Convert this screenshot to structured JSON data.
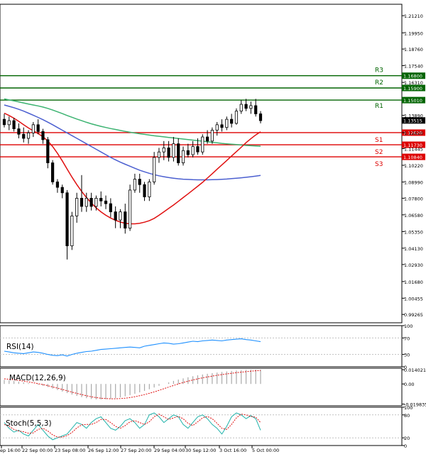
{
  "chart_data": {
    "type": "candlestick",
    "instrument_panel": {
      "y_ticks": [
        "1.21210",
        "1.19950",
        "1.18760",
        "1.17540",
        "1.16310",
        "1.13890",
        "1.12620",
        "1.11445",
        "1.10220",
        "1.08990",
        "1.07800",
        "1.06580",
        "1.05350",
        "1.04130",
        "1.02930",
        "1.01680",
        "1.00455",
        "0.99265"
      ],
      "ylim": [
        0.9865,
        1.2205
      ],
      "current_price": "1.13515",
      "x_labels": [
        "ep 16:00",
        "22 Sep 00:00",
        "23 Sep 08:00",
        "26 Sep 12:00",
        "27 Sep 20:00",
        "29 Sep 04:00",
        "30 Sep 12:00",
        "3 Oct 16:00",
        "5 Oct 00:00"
      ],
      "levels": [
        {
          "name": "R3",
          "value": 1.168,
          "label": "1.16800",
          "color": "#006400"
        },
        {
          "name": "R2",
          "value": 1.159,
          "label": "1.15900",
          "color": "#006400"
        },
        {
          "name": "R1",
          "value": 1.1501,
          "label": "1.15010",
          "color": "#006400"
        },
        {
          "name": "S1",
          "value": 1.1262,
          "label": "1.12620",
          "color": "#dd0000"
        },
        {
          "name": "S2",
          "value": 1.1173,
          "label": "1.11730",
          "color": "#dd0000"
        },
        {
          "name": "S3",
          "value": 1.1084,
          "label": "1.10840",
          "color": "#dd0000"
        }
      ],
      "candles": [
        {
          "o": 1.136,
          "h": 1.14,
          "l": 1.13,
          "c": 1.132
        },
        {
          "o": 1.132,
          "h": 1.138,
          "l": 1.128,
          "c": 1.135
        },
        {
          "o": 1.135,
          "h": 1.137,
          "l": 1.127,
          "c": 1.129
        },
        {
          "o": 1.129,
          "h": 1.133,
          "l": 1.122,
          "c": 1.125
        },
        {
          "o": 1.125,
          "h": 1.13,
          "l": 1.119,
          "c": 1.122
        },
        {
          "o": 1.122,
          "h": 1.128,
          "l": 1.118,
          "c": 1.126
        },
        {
          "o": 1.126,
          "h": 1.134,
          "l": 1.123,
          "c": 1.132
        },
        {
          "o": 1.132,
          "h": 1.136,
          "l": 1.125,
          "c": 1.127
        },
        {
          "o": 1.127,
          "h": 1.129,
          "l": 1.118,
          "c": 1.121
        },
        {
          "o": 1.121,
          "h": 1.123,
          "l": 1.1,
          "c": 1.104
        },
        {
          "o": 1.104,
          "h": 1.106,
          "l": 1.088,
          "c": 1.09
        },
        {
          "o": 1.09,
          "h": 1.092,
          "l": 1.082,
          "c": 1.086
        },
        {
          "o": 1.086,
          "h": 1.088,
          "l": 1.078,
          "c": 1.082
        },
        {
          "o": 1.082,
          "h": 1.084,
          "l": 1.033,
          "c": 1.043
        },
        {
          "o": 1.043,
          "h": 1.068,
          "l": 1.04,
          "c": 1.065
        },
        {
          "o": 1.065,
          "h": 1.082,
          "l": 1.06,
          "c": 1.078
        },
        {
          "o": 1.078,
          "h": 1.095,
          "l": 1.068,
          "c": 1.072
        },
        {
          "o": 1.072,
          "h": 1.082,
          "l": 1.068,
          "c": 1.078
        },
        {
          "o": 1.078,
          "h": 1.082,
          "l": 1.069,
          "c": 1.072
        },
        {
          "o": 1.072,
          "h": 1.08,
          "l": 1.069,
          "c": 1.078
        },
        {
          "o": 1.078,
          "h": 1.083,
          "l": 1.072,
          "c": 1.076
        },
        {
          "o": 1.076,
          "h": 1.08,
          "l": 1.07,
          "c": 1.074
        },
        {
          "o": 1.074,
          "h": 1.078,
          "l": 1.064,
          "c": 1.068
        },
        {
          "o": 1.068,
          "h": 1.072,
          "l": 1.056,
          "c": 1.062
        },
        {
          "o": 1.062,
          "h": 1.07,
          "l": 1.056,
          "c": 1.068
        },
        {
          "o": 1.068,
          "h": 1.074,
          "l": 1.052,
          "c": 1.056
        },
        {
          "o": 1.056,
          "h": 1.088,
          "l": 1.054,
          "c": 1.084
        },
        {
          "o": 1.084,
          "h": 1.096,
          "l": 1.082,
          "c": 1.092
        },
        {
          "o": 1.092,
          "h": 1.096,
          "l": 1.082,
          "c": 1.088
        },
        {
          "o": 1.088,
          "h": 1.09,
          "l": 1.076,
          "c": 1.079
        },
        {
          "o": 1.079,
          "h": 1.092,
          "l": 1.076,
          "c": 1.09
        },
        {
          "o": 1.09,
          "h": 1.112,
          "l": 1.088,
          "c": 1.108
        },
        {
          "o": 1.108,
          "h": 1.115,
          "l": 1.104,
          "c": 1.112
        },
        {
          "o": 1.112,
          "h": 1.12,
          "l": 1.106,
          "c": 1.115
        },
        {
          "o": 1.115,
          "h": 1.12,
          "l": 1.105,
          "c": 1.108
        },
        {
          "o": 1.108,
          "h": 1.123,
          "l": 1.105,
          "c": 1.118
        },
        {
          "o": 1.118,
          "h": 1.122,
          "l": 1.102,
          "c": 1.104
        },
        {
          "o": 1.104,
          "h": 1.116,
          "l": 1.102,
          "c": 1.113
        },
        {
          "o": 1.113,
          "h": 1.118,
          "l": 1.108,
          "c": 1.11
        },
        {
          "o": 1.11,
          "h": 1.12,
          "l": 1.108,
          "c": 1.116
        },
        {
          "o": 1.116,
          "h": 1.122,
          "l": 1.11,
          "c": 1.112
        },
        {
          "o": 1.112,
          "h": 1.125,
          "l": 1.11,
          "c": 1.123
        },
        {
          "o": 1.123,
          "h": 1.128,
          "l": 1.118,
          "c": 1.12
        },
        {
          "o": 1.12,
          "h": 1.13,
          "l": 1.118,
          "c": 1.128
        },
        {
          "o": 1.128,
          "h": 1.134,
          "l": 1.124,
          "c": 1.132
        },
        {
          "o": 1.132,
          "h": 1.136,
          "l": 1.127,
          "c": 1.13
        },
        {
          "o": 1.13,
          "h": 1.138,
          "l": 1.128,
          "c": 1.136
        },
        {
          "o": 1.136,
          "h": 1.14,
          "l": 1.13,
          "c": 1.133
        },
        {
          "o": 1.133,
          "h": 1.144,
          "l": 1.132,
          "c": 1.142
        },
        {
          "o": 1.142,
          "h": 1.15,
          "l": 1.14,
          "c": 1.147
        },
        {
          "o": 1.147,
          "h": 1.151,
          "l": 1.142,
          "c": 1.144
        },
        {
          "o": 1.144,
          "h": 1.149,
          "l": 1.14,
          "c": 1.146
        },
        {
          "o": 1.146,
          "h": 1.151,
          "l": 1.138,
          "c": 1.14
        },
        {
          "o": 1.14,
          "h": 1.142,
          "l": 1.133,
          "c": 1.135
        }
      ],
      "ma_red": [
        1.1405,
        1.1388,
        1.1368,
        1.1345,
        1.132,
        1.1296,
        1.1275,
        1.1255,
        1.1232,
        1.12,
        1.116,
        1.111,
        1.1055,
        1.0995,
        1.0935,
        1.088,
        1.083,
        1.0785,
        1.0745,
        1.071,
        1.068,
        1.0655,
        1.0635,
        1.0618,
        1.0605,
        1.0596,
        1.0592,
        1.0592,
        1.0596,
        1.0604,
        1.0615,
        1.0632,
        1.0655,
        1.068,
        1.0705,
        1.073,
        1.0757,
        1.0785,
        1.0812,
        1.084,
        1.0868,
        1.0897,
        1.0928,
        1.096,
        1.0993,
        1.1025,
        1.1057,
        1.109,
        1.1122,
        1.1155,
        1.1188,
        1.1218,
        1.1245,
        1.1268
      ],
      "ma_green": [
        1.151,
        1.1502,
        1.1495,
        1.1488,
        1.148,
        1.1472,
        1.1465,
        1.1458,
        1.145,
        1.144,
        1.1428,
        1.1415,
        1.1402,
        1.1388,
        1.1375,
        1.1362,
        1.135,
        1.1338,
        1.1327,
        1.1317,
        1.1308,
        1.13,
        1.1292,
        1.1285,
        1.1278,
        1.1271,
        1.1265,
        1.1259,
        1.1254,
        1.1249,
        1.1244,
        1.1239,
        1.1235,
        1.1231,
        1.1227,
        1.1223,
        1.1219,
        1.1215,
        1.1211,
        1.1207,
        1.1203,
        1.1199,
        1.1195,
        1.1191,
        1.1187,
        1.1183,
        1.118,
        1.1177,
        1.1174,
        1.1171,
        1.1168,
        1.1166,
        1.1164,
        1.1162
      ],
      "ma_blue": [
        1.1465,
        1.1455,
        1.1445,
        1.1433,
        1.142,
        1.1405,
        1.139,
        1.1374,
        1.1357,
        1.1339,
        1.132,
        1.13,
        1.128,
        1.126,
        1.124,
        1.122,
        1.12,
        1.118,
        1.116,
        1.114,
        1.112,
        1.11,
        1.108,
        1.1062,
        1.1045,
        1.103,
        1.1015,
        1.1,
        1.0986,
        1.0974,
        1.0963,
        1.0953,
        1.0945,
        1.0938,
        1.0932,
        1.0927,
        1.0923,
        1.092,
        1.0918,
        1.0916,
        1.0915,
        1.0915,
        1.0915,
        1.0916,
        1.0917,
        1.0919,
        1.0921,
        1.0924,
        1.0927,
        1.093,
        1.0934,
        1.0938,
        1.0943,
        1.0948
      ]
    },
    "rsi_panel": {
      "label": "RSI(14)",
      "y_ticks": [
        "100",
        "70",
        "30",
        "0"
      ],
      "ylim": [
        0,
        100
      ],
      "values": [
        38,
        36,
        34,
        33,
        32,
        34,
        36,
        35,
        33,
        30,
        28,
        27,
        29,
        26,
        30,
        33,
        35,
        37,
        38,
        40,
        42,
        43,
        44,
        45,
        46,
        47,
        48,
        47,
        46,
        50,
        52,
        54,
        56,
        58,
        57,
        55,
        56,
        58,
        60,
        62,
        61,
        63,
        64,
        65,
        64,
        63,
        65,
        66,
        67,
        68,
        66,
        65,
        63,
        61
      ]
    },
    "macd_panel": {
      "label": "MACD(12,26,9)",
      "y_ticks": [
        "0.014021",
        "0.00",
        "-0.019835"
      ],
      "ylim": [
        -0.0215,
        0.0155
      ],
      "hist": [
        0.004,
        0.0035,
        0.003,
        0.0022,
        0.0015,
        0.0008,
        0,
        -0.0008,
        -0.0018,
        -0.003,
        -0.0045,
        -0.006,
        -0.0075,
        -0.009,
        -0.0105,
        -0.0118,
        -0.013,
        -0.014,
        -0.0148,
        -0.0152,
        -0.0152,
        -0.015,
        -0.0146,
        -0.014,
        -0.0132,
        -0.0122,
        -0.011,
        -0.0097,
        -0.0083,
        -0.0068,
        -0.0052,
        -0.0035,
        -0.0018,
        0,
        0.0015,
        0.003,
        0.0043,
        0.0055,
        0.0066,
        0.0076,
        0.0085,
        0.0093,
        0.01,
        0.0106,
        0.0112,
        0.0118,
        0.0123,
        0.0128,
        0.0132,
        0.0135,
        0.0138,
        0.014,
        0.0141,
        0.014
      ],
      "signal": [
        0.005,
        0.0046,
        0.0041,
        0.0035,
        0.0028,
        0.002,
        0.0012,
        0.0003,
        -0.0006,
        -0.0017,
        -0.0029,
        -0.0041,
        -0.0054,
        -0.0067,
        -0.008,
        -0.0093,
        -0.0105,
        -0.0116,
        -0.0126,
        -0.0134,
        -0.014,
        -0.0144,
        -0.0146,
        -0.0146,
        -0.0144,
        -0.014,
        -0.0134,
        -0.0126,
        -0.0116,
        -0.0105,
        -0.0092,
        -0.0078,
        -0.0063,
        -0.0047,
        -0.0031,
        -0.0015,
        0,
        0.0014,
        0.0027,
        0.0039,
        0.005,
        0.006,
        0.0069,
        0.0077,
        0.0085,
        0.0092,
        0.0099,
        0.0105,
        0.0111,
        0.0116,
        0.0121,
        0.0126,
        0.013,
        0.0133
      ]
    },
    "stoch_panel": {
      "label": "Stoch(5,5,3)",
      "y_ticks": [
        "100",
        "80",
        "20",
        "0"
      ],
      "ylim": [
        0,
        100
      ],
      "k": [
        60,
        45,
        35,
        40,
        30,
        25,
        40,
        55,
        40,
        25,
        15,
        20,
        25,
        30,
        45,
        60,
        55,
        45,
        60,
        70,
        75,
        60,
        45,
        40,
        50,
        65,
        70,
        60,
        45,
        55,
        80,
        85,
        75,
        60,
        70,
        80,
        75,
        55,
        45,
        60,
        75,
        80,
        70,
        55,
        45,
        30,
        50,
        75,
        85,
        80,
        70,
        78,
        70,
        40
      ],
      "d": [
        55,
        50,
        42,
        38,
        36,
        32,
        33,
        42,
        45,
        38,
        28,
        22,
        22,
        26,
        34,
        46,
        54,
        55,
        55,
        60,
        68,
        68,
        60,
        50,
        45,
        52,
        62,
        65,
        60,
        55,
        62,
        75,
        82,
        75,
        68,
        72,
        76,
        70,
        58,
        52,
        62,
        72,
        76,
        70,
        58,
        45,
        42,
        55,
        72,
        82,
        80,
        76,
        74,
        60
      ]
    }
  }
}
